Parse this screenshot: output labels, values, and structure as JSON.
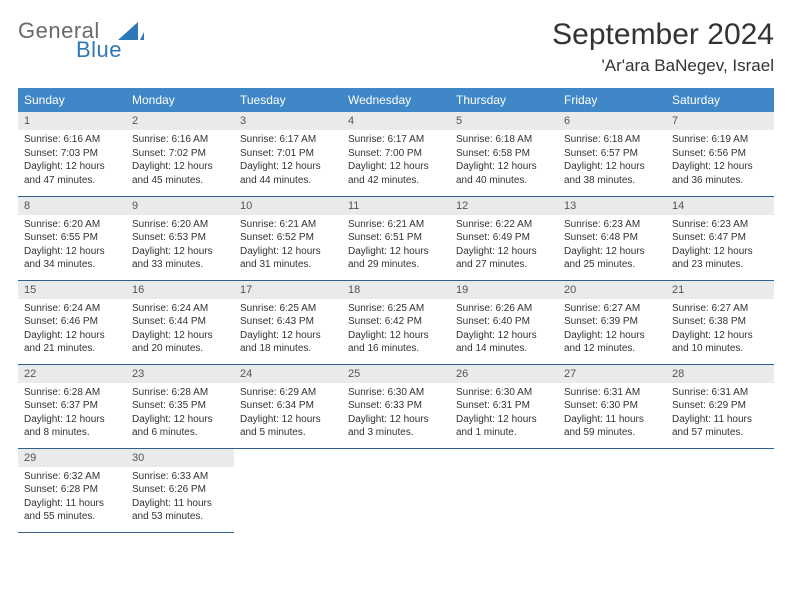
{
  "logo": {
    "word1": "General",
    "word2": "Blue",
    "color1": "#6a6a6a",
    "color2": "#2f78b8",
    "sail_color": "#2f78b8"
  },
  "title": "September 2024",
  "location": "'Ar'ara BaNegev, Israel",
  "colors": {
    "header_bg": "#3f87c7",
    "header_fg": "#ffffff",
    "daynum_bg": "#e9eaeb",
    "rule": "#2f5f8a",
    "text": "#333333"
  },
  "weekdays": [
    "Sunday",
    "Monday",
    "Tuesday",
    "Wednesday",
    "Thursday",
    "Friday",
    "Saturday"
  ],
  "weeks": [
    [
      {
        "n": "1",
        "sr": "6:16 AM",
        "ss": "7:03 PM",
        "dl": "12 hours and 47 minutes."
      },
      {
        "n": "2",
        "sr": "6:16 AM",
        "ss": "7:02 PM",
        "dl": "12 hours and 45 minutes."
      },
      {
        "n": "3",
        "sr": "6:17 AM",
        "ss": "7:01 PM",
        "dl": "12 hours and 44 minutes."
      },
      {
        "n": "4",
        "sr": "6:17 AM",
        "ss": "7:00 PM",
        "dl": "12 hours and 42 minutes."
      },
      {
        "n": "5",
        "sr": "6:18 AM",
        "ss": "6:58 PM",
        "dl": "12 hours and 40 minutes."
      },
      {
        "n": "6",
        "sr": "6:18 AM",
        "ss": "6:57 PM",
        "dl": "12 hours and 38 minutes."
      },
      {
        "n": "7",
        "sr": "6:19 AM",
        "ss": "6:56 PM",
        "dl": "12 hours and 36 minutes."
      }
    ],
    [
      {
        "n": "8",
        "sr": "6:20 AM",
        "ss": "6:55 PM",
        "dl": "12 hours and 34 minutes."
      },
      {
        "n": "9",
        "sr": "6:20 AM",
        "ss": "6:53 PM",
        "dl": "12 hours and 33 minutes."
      },
      {
        "n": "10",
        "sr": "6:21 AM",
        "ss": "6:52 PM",
        "dl": "12 hours and 31 minutes."
      },
      {
        "n": "11",
        "sr": "6:21 AM",
        "ss": "6:51 PM",
        "dl": "12 hours and 29 minutes."
      },
      {
        "n": "12",
        "sr": "6:22 AM",
        "ss": "6:49 PM",
        "dl": "12 hours and 27 minutes."
      },
      {
        "n": "13",
        "sr": "6:23 AM",
        "ss": "6:48 PM",
        "dl": "12 hours and 25 minutes."
      },
      {
        "n": "14",
        "sr": "6:23 AM",
        "ss": "6:47 PM",
        "dl": "12 hours and 23 minutes."
      }
    ],
    [
      {
        "n": "15",
        "sr": "6:24 AM",
        "ss": "6:46 PM",
        "dl": "12 hours and 21 minutes."
      },
      {
        "n": "16",
        "sr": "6:24 AM",
        "ss": "6:44 PM",
        "dl": "12 hours and 20 minutes."
      },
      {
        "n": "17",
        "sr": "6:25 AM",
        "ss": "6:43 PM",
        "dl": "12 hours and 18 minutes."
      },
      {
        "n": "18",
        "sr": "6:25 AM",
        "ss": "6:42 PM",
        "dl": "12 hours and 16 minutes."
      },
      {
        "n": "19",
        "sr": "6:26 AM",
        "ss": "6:40 PM",
        "dl": "12 hours and 14 minutes."
      },
      {
        "n": "20",
        "sr": "6:27 AM",
        "ss": "6:39 PM",
        "dl": "12 hours and 12 minutes."
      },
      {
        "n": "21",
        "sr": "6:27 AM",
        "ss": "6:38 PM",
        "dl": "12 hours and 10 minutes."
      }
    ],
    [
      {
        "n": "22",
        "sr": "6:28 AM",
        "ss": "6:37 PM",
        "dl": "12 hours and 8 minutes."
      },
      {
        "n": "23",
        "sr": "6:28 AM",
        "ss": "6:35 PM",
        "dl": "12 hours and 6 minutes."
      },
      {
        "n": "24",
        "sr": "6:29 AM",
        "ss": "6:34 PM",
        "dl": "12 hours and 5 minutes."
      },
      {
        "n": "25",
        "sr": "6:30 AM",
        "ss": "6:33 PM",
        "dl": "12 hours and 3 minutes."
      },
      {
        "n": "26",
        "sr": "6:30 AM",
        "ss": "6:31 PM",
        "dl": "12 hours and 1 minute."
      },
      {
        "n": "27",
        "sr": "6:31 AM",
        "ss": "6:30 PM",
        "dl": "11 hours and 59 minutes."
      },
      {
        "n": "28",
        "sr": "6:31 AM",
        "ss": "6:29 PM",
        "dl": "11 hours and 57 minutes."
      }
    ],
    [
      {
        "n": "29",
        "sr": "6:32 AM",
        "ss": "6:28 PM",
        "dl": "11 hours and 55 minutes."
      },
      {
        "n": "30",
        "sr": "6:33 AM",
        "ss": "6:26 PM",
        "dl": "11 hours and 53 minutes."
      },
      null,
      null,
      null,
      null,
      null
    ]
  ],
  "labels": {
    "sunrise": "Sunrise:",
    "sunset": "Sunset:",
    "daylight": "Daylight:"
  }
}
